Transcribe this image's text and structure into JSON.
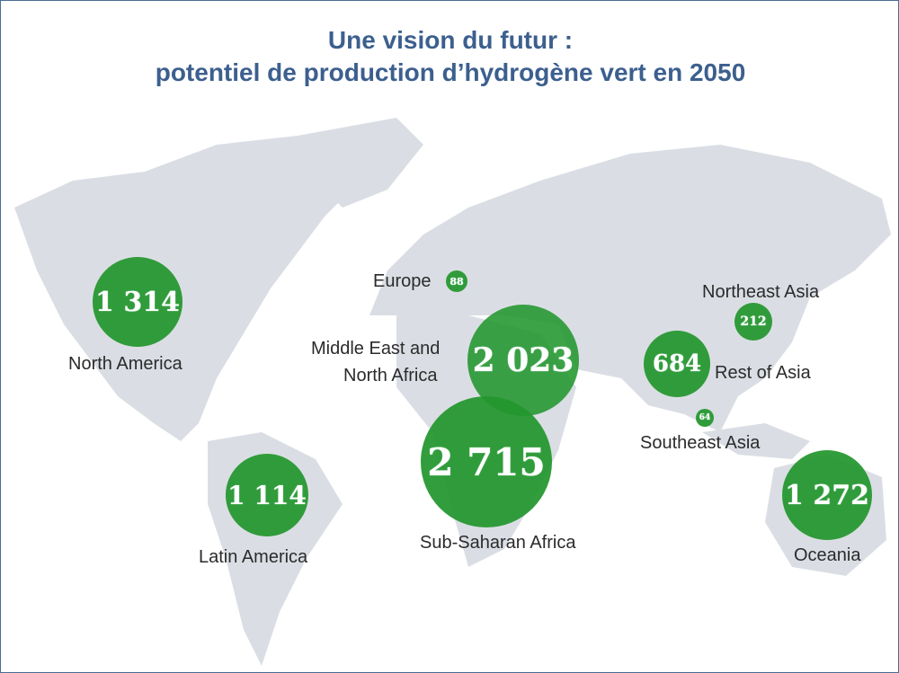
{
  "title": {
    "line1": "Une vision du futur :",
    "line2": "potentiel de production d’hydrogène vert en 2050"
  },
  "colors": {
    "bubble": "#22962d",
    "land": "#dadee4",
    "title": "#3c5f8e"
  },
  "regions": [
    {
      "id": "north-america",
      "name": "North America",
      "value": "1 314"
    },
    {
      "id": "europe",
      "name": "Europe",
      "value": "88"
    },
    {
      "id": "mena",
      "name": "Middle East and North Africa",
      "name_line1": "Middle East and",
      "name_line2": "North Africa",
      "value": "2 023"
    },
    {
      "id": "sub-saharan-africa",
      "name": "Sub-Saharan Africa",
      "value": "2 715"
    },
    {
      "id": "latin-america",
      "name": "Latin America",
      "value": "1 114"
    },
    {
      "id": "rest-of-asia",
      "name": "Rest of Asia",
      "value": "684"
    },
    {
      "id": "northeast-asia",
      "name": "Northeast Asia",
      "value": "212"
    },
    {
      "id": "southeast-asia",
      "name": "Southeast Asia",
      "value": "64"
    },
    {
      "id": "oceania",
      "name": "Oceania",
      "value": "1 272"
    }
  ]
}
